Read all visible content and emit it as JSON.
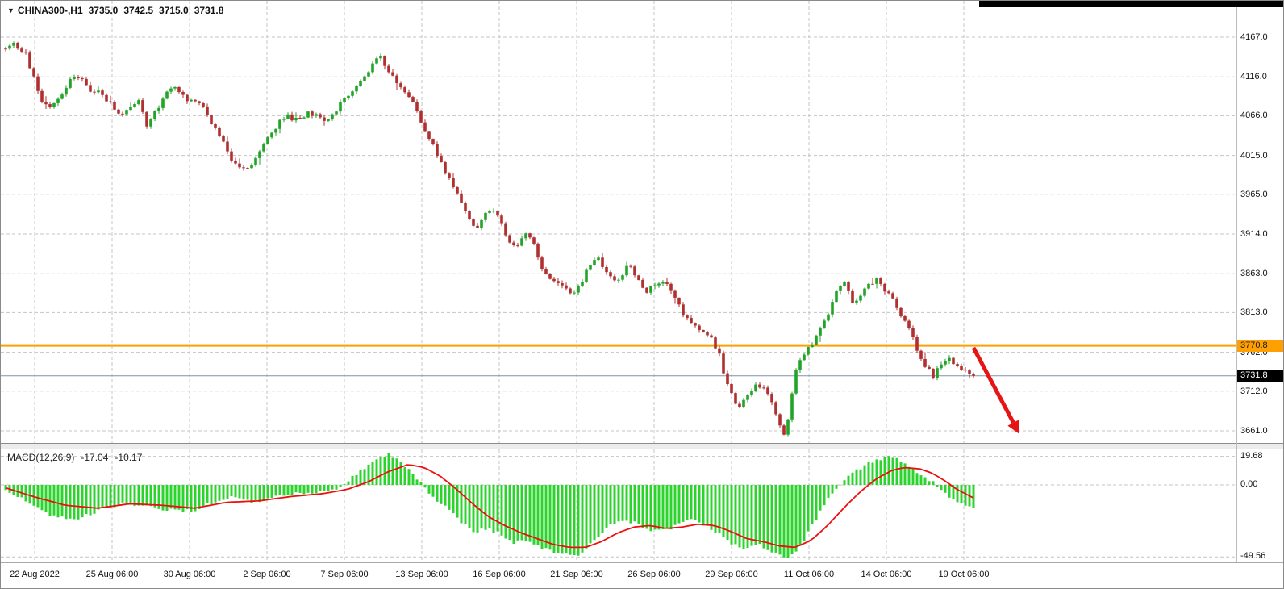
{
  "window": {
    "top_border_color": "#000000"
  },
  "header": {
    "dropdown_icon": "▼",
    "symbol": "CHINA300-,H1",
    "open": "3735.0",
    "high": "3742.5",
    "low": "3715.0",
    "close": "3731.8"
  },
  "chart_data": [
    {
      "type": "candlestick",
      "symbol": "CHINA300-",
      "timeframe": "H1",
      "last_ohlc": {
        "open": 3735.0,
        "high": 3742.5,
        "low": 3715.0,
        "close": 3731.8
      },
      "y_axis": {
        "side": "right",
        "grid": "dashed",
        "labels": [
          "4167.0",
          "4116.0",
          "4066.0",
          "4015.0",
          "3965.0",
          "3914.0",
          "3863.0",
          "3813.0",
          "3762.0",
          "3712.0",
          "3661.0"
        ]
      },
      "x_axis": {
        "labels": [
          "22 Aug 2022",
          "25 Aug 06:00",
          "30 Aug 06:00",
          "2 Sep 06:00",
          "7 Sep 06:00",
          "13 Sep 06:00",
          "16 Sep 06:00",
          "21 Sep 06:00",
          "26 Sep 06:00",
          "29 Sep 06:00",
          "11 Oct 06:00",
          "14 Oct 06:00",
          "19 Oct 06:00"
        ]
      },
      "price_line": {
        "value": 3770.8,
        "label": "3770.8",
        "color": "#ff9f00",
        "text_color": "#1a1a1a"
      },
      "last_price": {
        "value": 3731.8,
        "label": "3731.8",
        "bg": "#000000",
        "fg": "#ffffff"
      },
      "arrow_annotation": {
        "color": "#e61414",
        "from": [
          1206,
          430
        ],
        "to": [
          1263,
          537
        ]
      },
      "colors": {
        "bull": "#22a428",
        "bear": "#b03030",
        "grid": "#c4c4c4",
        "background": "#ffffff",
        "current_price_line": "#7f93a8"
      },
      "seed": 11,
      "noise": {
        "body": 3.2,
        "wick": 3.4
      },
      "price_path": [
        [
          6,
          4152
        ],
        [
          12,
          4160
        ],
        [
          20,
          4155
        ],
        [
          30,
          4148
        ],
        [
          40,
          4118
        ],
        [
          50,
          4088
        ],
        [
          60,
          4076
        ],
        [
          72,
          4090
        ],
        [
          82,
          4104
        ],
        [
          92,
          4120
        ],
        [
          102,
          4112
        ],
        [
          112,
          4094
        ],
        [
          122,
          4097
        ],
        [
          132,
          4086
        ],
        [
          142,
          4072
        ],
        [
          152,
          4064
        ],
        [
          162,
          4080
        ],
        [
          172,
          4086
        ],
        [
          182,
          4052
        ],
        [
          192,
          4072
        ],
        [
          202,
          4088
        ],
        [
          212,
          4106
        ],
        [
          222,
          4092
        ],
        [
          232,
          4086
        ],
        [
          244,
          4086
        ],
        [
          254,
          4070
        ],
        [
          264,
          4052
        ],
        [
          274,
          4034
        ],
        [
          284,
          4014
        ],
        [
          294,
          3998
        ],
        [
          304,
          4000
        ],
        [
          314,
          4006
        ],
        [
          324,
          4026
        ],
        [
          334,
          4042
        ],
        [
          344,
          4056
        ],
        [
          354,
          4066
        ],
        [
          364,
          4060
        ],
        [
          374,
          4066
        ],
        [
          384,
          4070
        ],
        [
          394,
          4064
        ],
        [
          404,
          4058
        ],
        [
          414,
          4070
        ],
        [
          424,
          4086
        ],
        [
          434,
          4096
        ],
        [
          444,
          4110
        ],
        [
          454,
          4122
        ],
        [
          464,
          4136
        ],
        [
          472,
          4141
        ],
        [
          480,
          4122
        ],
        [
          490,
          4110
        ],
        [
          500,
          4100
        ],
        [
          510,
          4084
        ],
        [
          520,
          4060
        ],
        [
          530,
          4040
        ],
        [
          540,
          4020
        ],
        [
          550,
          3996
        ],
        [
          560,
          3976
        ],
        [
          570,
          3956
        ],
        [
          580,
          3936
        ],
        [
          590,
          3921
        ],
        [
          600,
          3940
        ],
        [
          610,
          3946
        ],
        [
          620,
          3930
        ],
        [
          630,
          3906
        ],
        [
          640,
          3896
        ],
        [
          650,
          3916
        ],
        [
          660,
          3906
        ],
        [
          670,
          3872
        ],
        [
          680,
          3856
        ],
        [
          690,
          3850
        ],
        [
          700,
          3846
        ],
        [
          710,
          3836
        ],
        [
          720,
          3852
        ],
        [
          730,
          3876
        ],
        [
          740,
          3882
        ],
        [
          750,
          3866
        ],
        [
          760,
          3852
        ],
        [
          770,
          3862
        ],
        [
          780,
          3876
        ],
        [
          790,
          3856
        ],
        [
          800,
          3840
        ],
        [
          810,
          3846
        ],
        [
          820,
          3856
        ],
        [
          830,
          3846
        ],
        [
          840,
          3822
        ],
        [
          850,
          3806
        ],
        [
          860,
          3796
        ],
        [
          870,
          3786
        ],
        [
          880,
          3780
        ],
        [
          890,
          3762
        ],
        [
          900,
          3722
        ],
        [
          910,
          3700
        ],
        [
          916,
          3690
        ],
        [
          926,
          3706
        ],
        [
          936,
          3722
        ],
        [
          946,
          3716
        ],
        [
          956,
          3700
        ],
        [
          966,
          3668
        ],
        [
          972,
          3655
        ],
        [
          980,
          3702
        ],
        [
          988,
          3752
        ],
        [
          996,
          3760
        ],
        [
          1006,
          3772
        ],
        [
          1016,
          3796
        ],
        [
          1026,
          3812
        ],
        [
          1036,
          3840
        ],
        [
          1046,
          3850
        ],
        [
          1056,
          3826
        ],
        [
          1066,
          3832
        ],
        [
          1076,
          3850
        ],
        [
          1086,
          3856
        ],
        [
          1096,
          3840
        ],
        [
          1106,
          3830
        ],
        [
          1116,
          3810
        ],
        [
          1126,
          3796
        ],
        [
          1136,
          3766
        ],
        [
          1146,
          3746
        ],
        [
          1156,
          3731
        ],
        [
          1166,
          3746
        ],
        [
          1176,
          3752
        ],
        [
          1186,
          3746
        ],
        [
          1196,
          3736
        ],
        [
          1206,
          3732
        ]
      ]
    },
    {
      "type": "macd",
      "label": "MACD(12,26,9)",
      "macd_value": "-17.04",
      "signal_value": "-10.17",
      "y_axis": {
        "labels": [
          "19.68",
          "0.00",
          "-49.56"
        ]
      },
      "colors": {
        "histogram": "#2dd32d",
        "signal": "#ee0e0e",
        "grid": "#c4c4c4"
      },
      "histogram_path": [
        [
          6,
          -3
        ],
        [
          30,
          -11
        ],
        [
          60,
          -21
        ],
        [
          90,
          -24
        ],
        [
          120,
          -18
        ],
        [
          150,
          -13
        ],
        [
          180,
          -15
        ],
        [
          210,
          -17
        ],
        [
          240,
          -18
        ],
        [
          270,
          -10
        ],
        [
          290,
          -8
        ],
        [
          310,
          -12
        ],
        [
          330,
          -10
        ],
        [
          350,
          -7
        ],
        [
          370,
          -6
        ],
        [
          390,
          -5
        ],
        [
          410,
          -4
        ],
        [
          425,
          0
        ],
        [
          440,
          7
        ],
        [
          455,
          13
        ],
        [
          470,
          19
        ],
        [
          483,
          21
        ],
        [
          498,
          15
        ],
        [
          512,
          7
        ],
        [
          526,
          -2
        ],
        [
          540,
          -10
        ],
        [
          556,
          -18
        ],
        [
          572,
          -26
        ],
        [
          588,
          -32
        ],
        [
          604,
          -30
        ],
        [
          620,
          -34
        ],
        [
          636,
          -40
        ],
        [
          652,
          -38
        ],
        [
          668,
          -43
        ],
        [
          684,
          -46
        ],
        [
          700,
          -48
        ],
        [
          714,
          -49
        ],
        [
          728,
          -42
        ],
        [
          742,
          -34
        ],
        [
          756,
          -28
        ],
        [
          770,
          -24
        ],
        [
          785,
          -26
        ],
        [
          800,
          -30
        ],
        [
          815,
          -32
        ],
        [
          830,
          -30
        ],
        [
          845,
          -26
        ],
        [
          860,
          -24
        ],
        [
          875,
          -28
        ],
        [
          890,
          -34
        ],
        [
          905,
          -40
        ],
        [
          920,
          -44
        ],
        [
          935,
          -40
        ],
        [
          950,
          -44
        ],
        [
          965,
          -49
        ],
        [
          978,
          -50
        ],
        [
          992,
          -42
        ],
        [
          1006,
          -28
        ],
        [
          1020,
          -14
        ],
        [
          1034,
          -4
        ],
        [
          1048,
          4
        ],
        [
          1062,
          10
        ],
        [
          1076,
          15
        ],
        [
          1090,
          18
        ],
        [
          1104,
          19
        ],
        [
          1118,
          16
        ],
        [
          1132,
          11
        ],
        [
          1146,
          5
        ],
        [
          1160,
          0
        ],
        [
          1174,
          -7
        ],
        [
          1188,
          -13
        ],
        [
          1206,
          -17
        ]
      ],
      "signal_path": [
        [
          6,
          -2
        ],
        [
          40,
          -8
        ],
        [
          80,
          -14
        ],
        [
          120,
          -16
        ],
        [
          160,
          -13
        ],
        [
          200,
          -14
        ],
        [
          240,
          -16
        ],
        [
          280,
          -12
        ],
        [
          320,
          -11
        ],
        [
          360,
          -8
        ],
        [
          400,
          -6
        ],
        [
          430,
          -3
        ],
        [
          455,
          2
        ],
        [
          480,
          9
        ],
        [
          505,
          14
        ],
        [
          525,
          12
        ],
        [
          545,
          6
        ],
        [
          565,
          -3
        ],
        [
          585,
          -13
        ],
        [
          605,
          -22
        ],
        [
          625,
          -28
        ],
        [
          645,
          -33
        ],
        [
          665,
          -37
        ],
        [
          685,
          -41
        ],
        [
          705,
          -43
        ],
        [
          725,
          -43
        ],
        [
          745,
          -39
        ],
        [
          765,
          -33
        ],
        [
          785,
          -29
        ],
        [
          805,
          -28
        ],
        [
          825,
          -30
        ],
        [
          845,
          -29
        ],
        [
          865,
          -27
        ],
        [
          885,
          -28
        ],
        [
          905,
          -32
        ],
        [
          925,
          -37
        ],
        [
          945,
          -39
        ],
        [
          965,
          -42
        ],
        [
          985,
          -43
        ],
        [
          1005,
          -38
        ],
        [
          1025,
          -28
        ],
        [
          1045,
          -16
        ],
        [
          1065,
          -5
        ],
        [
          1085,
          4
        ],
        [
          1105,
          10
        ],
        [
          1120,
          12
        ],
        [
          1140,
          11
        ],
        [
          1155,
          8
        ],
        [
          1170,
          3
        ],
        [
          1185,
          -3
        ],
        [
          1206,
          -9
        ]
      ]
    }
  ]
}
